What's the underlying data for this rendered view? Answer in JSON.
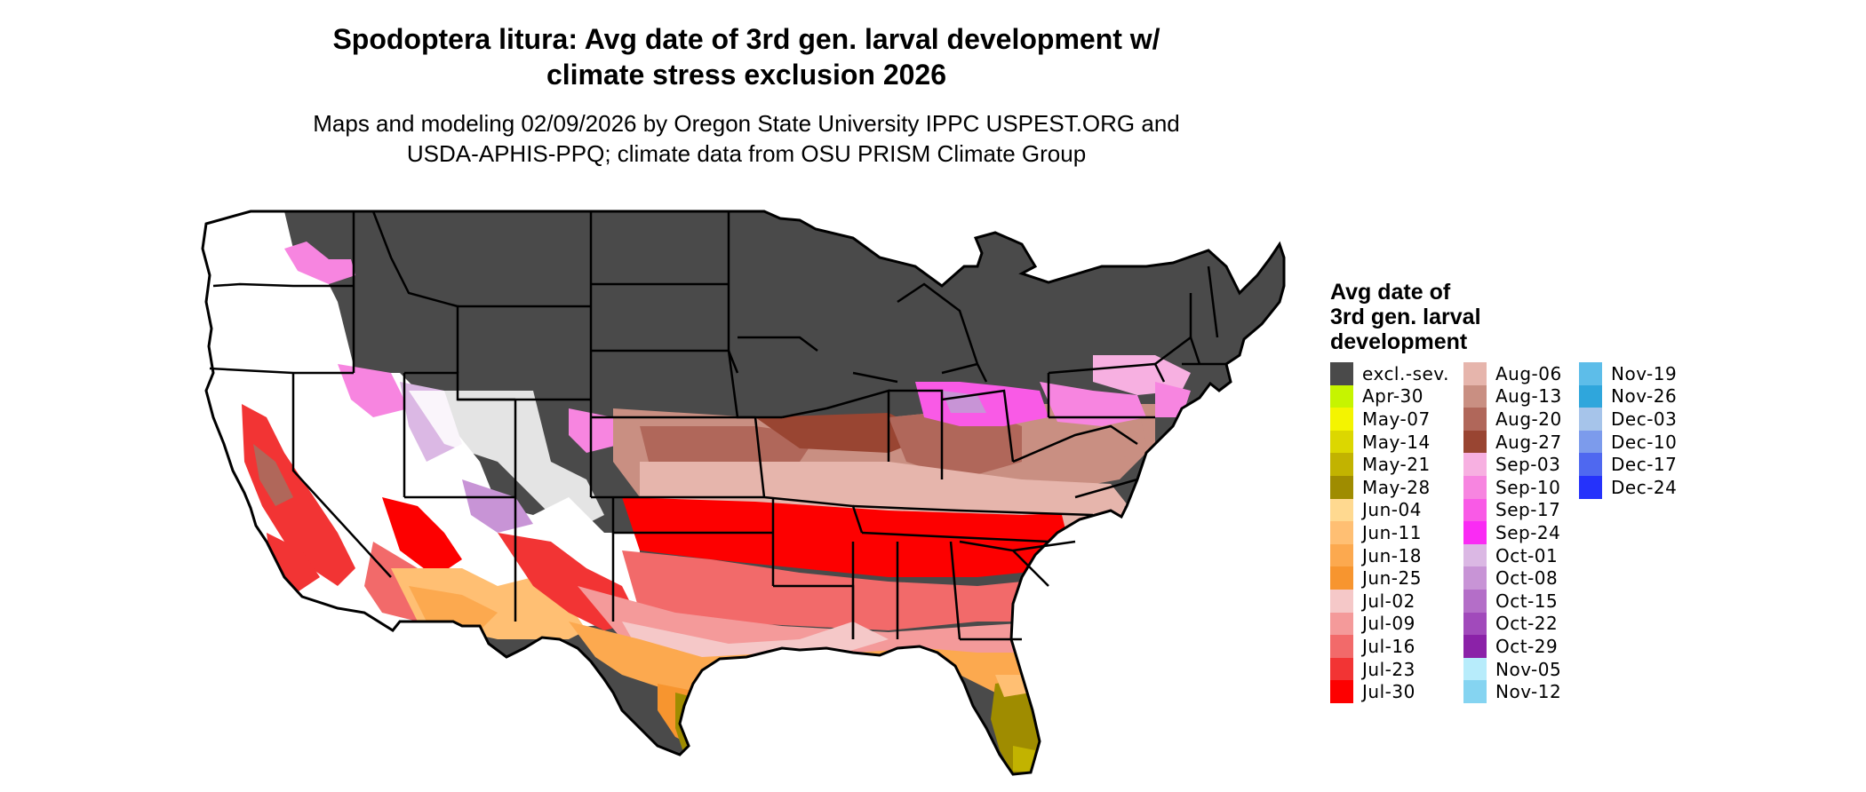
{
  "header": {
    "title_line1": "Spodoptera litura: Avg date of 3rd gen. larval development w/",
    "title_line2": "climate stress exclusion 2026",
    "subtitle_line1": "Maps and modeling 02/09/2026 by Oregon State University IPPC USPEST.ORG and",
    "subtitle_line2": "USDA-APHIS-PPQ; climate data from OSU PRISM Climate Group"
  },
  "legend": {
    "title_line1": "Avg date of",
    "title_line2": "3rd gen. larval",
    "title_line3": "development",
    "columns": [
      [
        {
          "label": "excl.-sev.",
          "color": "#4a4a4a"
        },
        {
          "label": "Apr-30",
          "color": "#c6f400"
        },
        {
          "label": "May-07",
          "color": "#f4f400"
        },
        {
          "label": "May-14",
          "color": "#dcd700"
        },
        {
          "label": "May-21",
          "color": "#c2b300"
        },
        {
          "label": "May-28",
          "color": "#9f8c00"
        },
        {
          "label": "Jun-04",
          "color": "#ffd990"
        },
        {
          "label": "Jun-11",
          "color": "#ffbf73"
        },
        {
          "label": "Jun-18",
          "color": "#fca94f"
        },
        {
          "label": "Jun-25",
          "color": "#f7952f"
        },
        {
          "label": "Jul-02",
          "color": "#f5c8c8"
        },
        {
          "label": "Jul-09",
          "color": "#f49a9a"
        },
        {
          "label": "Jul-16",
          "color": "#f26a6a"
        },
        {
          "label": "Jul-23",
          "color": "#f23434"
        },
        {
          "label": "Jul-30",
          "color": "#fd0000"
        }
      ],
      [
        {
          "label": "Aug-06",
          "color": "#e6b5ac"
        },
        {
          "label": "Aug-13",
          "color": "#c98f82"
        },
        {
          "label": "Aug-20",
          "color": "#b0675a"
        },
        {
          "label": "Aug-27",
          "color": "#994532"
        },
        {
          "label": "Sep-03",
          "color": "#f7b0e1"
        },
        {
          "label": "Sep-10",
          "color": "#f785e0"
        },
        {
          "label": "Sep-17",
          "color": "#f95ae6"
        },
        {
          "label": "Sep-24",
          "color": "#fa2bf4"
        },
        {
          "label": "Oct-01",
          "color": "#dbb8e4"
        },
        {
          "label": "Oct-08",
          "color": "#c894d6"
        },
        {
          "label": "Oct-15",
          "color": "#b46ec8"
        },
        {
          "label": "Oct-22",
          "color": "#a14abb"
        },
        {
          "label": "Oct-29",
          "color": "#8b22a8"
        },
        {
          "label": "Nov-05",
          "color": "#b7ecfb"
        },
        {
          "label": "Nov-12",
          "color": "#85d4f1"
        }
      ],
      [
        {
          "label": "Nov-19",
          "color": "#5dbde9"
        },
        {
          "label": "Nov-26",
          "color": "#2fa6dc"
        },
        {
          "label": "Dec-03",
          "color": "#a6c4ea"
        },
        {
          "label": "Dec-10",
          "color": "#7c9bec"
        },
        {
          "label": "Dec-17",
          "color": "#4f68f0"
        },
        {
          "label": "Dec-24",
          "color": "#2532fb"
        }
      ]
    ]
  }
}
